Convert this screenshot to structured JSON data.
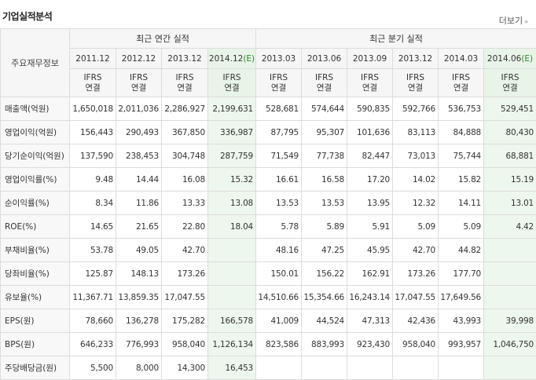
{
  "section": {
    "title": "기업실적분석",
    "more_label": "더보기",
    "more_arrow": "»"
  },
  "header": {
    "corner_label": "주요재무정보",
    "annual_group": "최근 연간 실적",
    "quarter_group": "최근 분기 실적",
    "periods": [
      {
        "label": "2011.12",
        "est": ""
      },
      {
        "label": "2012.12",
        "est": ""
      },
      {
        "label": "2013.12",
        "est": ""
      },
      {
        "label": "2014.12",
        "est": "(E)"
      },
      {
        "label": "2013.03",
        "est": ""
      },
      {
        "label": "2013.06",
        "est": ""
      },
      {
        "label": "2013.09",
        "est": ""
      },
      {
        "label": "2013.12",
        "est": ""
      },
      {
        "label": "2014.03",
        "est": ""
      },
      {
        "label": "2014.06",
        "est": "(E)"
      }
    ],
    "ifrs_line1": "IFRS",
    "ifrs_line2": "연결"
  },
  "rows": [
    {
      "label": "매출액(억원)",
      "values": [
        "1,650,018",
        "2,011,036",
        "2,286,927",
        "2,199,631",
        "528,681",
        "574,644",
        "590,835",
        "592,766",
        "536,753",
        "529,451"
      ]
    },
    {
      "label": "영업이익(억원)",
      "values": [
        "156,443",
        "290,493",
        "367,850",
        "336,987",
        "87,795",
        "95,307",
        "101,636",
        "83,113",
        "84,888",
        "80,430"
      ]
    },
    {
      "label": "당기순이익(억원)",
      "values": [
        "137,590",
        "238,453",
        "304,748",
        "287,759",
        "71,549",
        "77,738",
        "82,447",
        "73,013",
        "75,744",
        "68,881"
      ]
    },
    {
      "label": "영업이익률(%)",
      "values": [
        "9.48",
        "14.44",
        "16.08",
        "15.32",
        "16.61",
        "16.58",
        "17.20",
        "14.02",
        "15.82",
        "15.19"
      ]
    },
    {
      "label": "순이익률(%)",
      "values": [
        "8.34",
        "11.86",
        "13.33",
        "13.08",
        "13.53",
        "13.53",
        "13.95",
        "12.32",
        "14.11",
        "13.01"
      ]
    },
    {
      "label": "ROE(%)",
      "values": [
        "14.65",
        "21.65",
        "22.80",
        "18.04",
        "5.78",
        "5.89",
        "5.91",
        "5.09",
        "5.09",
        "4.42"
      ]
    },
    {
      "label": "부채비율(%)",
      "values": [
        "53.78",
        "49.05",
        "42.70",
        "",
        "48.16",
        "47.25",
        "45.95",
        "42.70",
        "44.82",
        ""
      ]
    },
    {
      "label": "당좌비율(%)",
      "values": [
        "125.87",
        "148.13",
        "173.26",
        "",
        "150.01",
        "156.22",
        "162.91",
        "173.26",
        "177.70",
        ""
      ]
    },
    {
      "label": "유보율(%)",
      "values": [
        "11,367.71",
        "13,859.35",
        "17,047.55",
        "",
        "14,510.66",
        "15,354.66",
        "16,243.14",
        "17,047.55",
        "17,649.56",
        ""
      ]
    },
    {
      "label": "EPS(원)",
      "values": [
        "78,660",
        "136,278",
        "175,282",
        "166,578",
        "41,009",
        "44,524",
        "47,313",
        "42,436",
        "43,993",
        "39,998"
      ]
    },
    {
      "label": "BPS(원)",
      "values": [
        "646,233",
        "776,993",
        "958,040",
        "1,126,134",
        "823,586",
        "883,993",
        "923,430",
        "958,040",
        "993,957",
        "1,046,750"
      ]
    },
    {
      "label": "주당배당금(원)",
      "values": [
        "5,500",
        "8,000",
        "14,300",
        "16,453",
        "",
        "",
        "",
        "",
        "",
        ""
      ]
    }
  ]
}
